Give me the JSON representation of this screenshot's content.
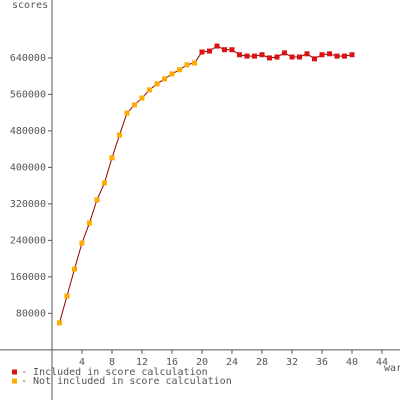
{
  "chart_data": {
    "type": "line",
    "x_label": "war",
    "y_label": "scores",
    "line_color": "#8b0000",
    "series": [
      {
        "name": "- Included in score calculation",
        "color": "#dd1111",
        "x": [
          20,
          21,
          22,
          23,
          24,
          25,
          26,
          27,
          28,
          29,
          30,
          31,
          32,
          33,
          34,
          35,
          36,
          37,
          38,
          39,
          40
        ],
        "values": [
          653000,
          655000,
          666000,
          658000,
          658000,
          647000,
          644000,
          644000,
          647000,
          640000,
          642000,
          651000,
          642000,
          642000,
          649000,
          638000,
          647000,
          649000,
          644000,
          644000,
          647000
        ]
      },
      {
        "name": "- Not included in score calculation",
        "color": "#ffaa00",
        "x": [
          1,
          2,
          3,
          4,
          5,
          6,
          7,
          8,
          9,
          10,
          11,
          12,
          13,
          14,
          15,
          16,
          17,
          18,
          19
        ],
        "values": [
          59000,
          118000,
          177000,
          234000,
          278000,
          329000,
          366000,
          421000,
          471000,
          519000,
          537000,
          552000,
          570000,
          583000,
          594000,
          605000,
          614000,
          625000,
          629000
        ]
      }
    ],
    "xlim": [
      -6.93,
      46.4
    ],
    "ylim": [
      -110000,
      767000
    ],
    "xticks": [
      4,
      8,
      12,
      16,
      20,
      24,
      28,
      32,
      36,
      40,
      44
    ],
    "yticks": [
      80000,
      160000,
      240000,
      320000,
      400000,
      480000,
      560000,
      640000
    ]
  }
}
